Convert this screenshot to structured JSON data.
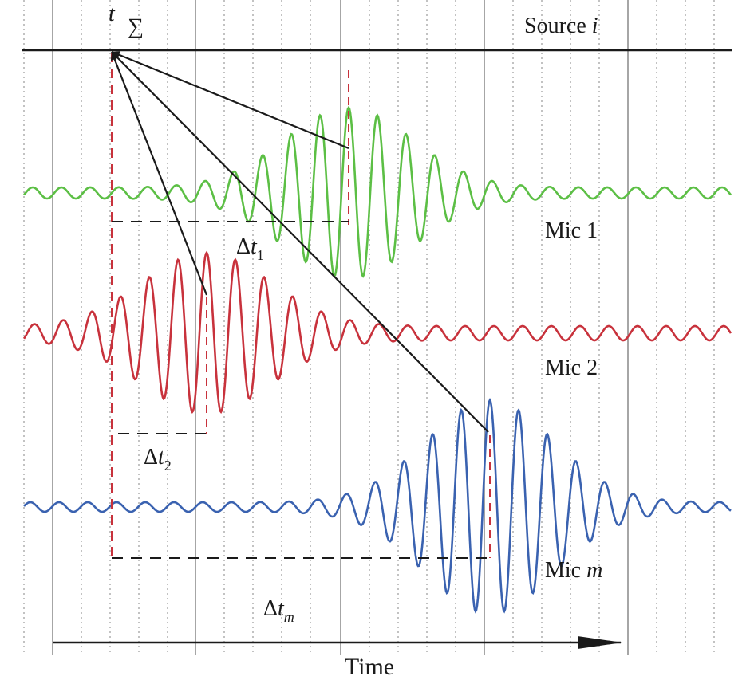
{
  "source_label": {
    "text": "Source ",
    "var": "i"
  },
  "sum_label": {
    "t": "t",
    "sigma": "∑"
  },
  "mics": [
    {
      "name": "Mic ",
      "var": "1",
      "var_italic": false,
      "color": "#5cbf45",
      "delay_label": {
        "delta": "Δ",
        "t": "t",
        "sub": "1"
      }
    },
    {
      "name": "Mic ",
      "var": "2",
      "var_italic": false,
      "color": "#c8323c",
      "delay_label": {
        "delta": "Δ",
        "t": "t",
        "sub": "2"
      }
    },
    {
      "name": "Mic ",
      "var": "m",
      "var_italic": true,
      "color": "#3a62b0",
      "delay_label": {
        "delta": "Δ",
        "t": "t",
        "sub": "m"
      }
    }
  ],
  "time_axis_label": "Time",
  "colors": {
    "grid_solid": "#888888",
    "grid_dotted": "#9a9a9a",
    "lines": "#1a1a1a",
    "marker": "#c8323c"
  }
}
